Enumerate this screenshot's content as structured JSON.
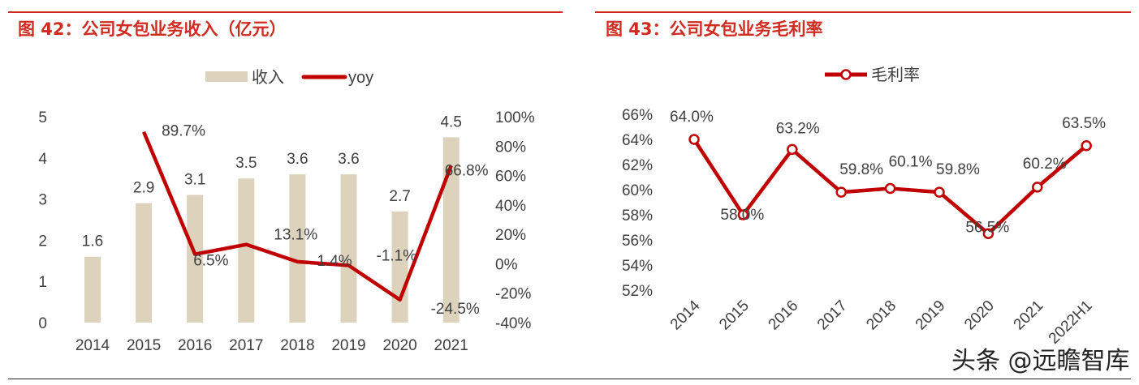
{
  "chart_data": [
    {
      "type": "bar+line",
      "title": "图 42：公司女包业务收入（亿元）",
      "categories": [
        "2014",
        "2015",
        "2016",
        "2017",
        "2018",
        "2019",
        "2020",
        "2021"
      ],
      "series": [
        {
          "name": "收入",
          "type": "bar",
          "axis": "left",
          "values": [
            1.6,
            2.9,
            3.1,
            3.5,
            3.6,
            3.6,
            2.7,
            4.5
          ],
          "labels": [
            "1.6",
            "2.9",
            "3.1",
            "3.5",
            "3.6",
            "3.6",
            "2.7",
            "4.5"
          ],
          "color": "#ddd3bd"
        },
        {
          "name": "yoy",
          "type": "line",
          "axis": "right",
          "values": [
            null,
            89.7,
            6.5,
            13.1,
            1.4,
            -1.1,
            -24.5,
            66.8
          ],
          "labels": [
            "",
            "89.7%",
            "6.5%",
            "13.1%",
            "1.4%",
            "-1.1%",
            "-24.5%",
            "66.8%"
          ],
          "color": "#c00000"
        }
      ],
      "yleft": {
        "range": [
          0,
          5
        ],
        "ticks": [
          "0",
          "1",
          "2",
          "3",
          "4",
          "5"
        ]
      },
      "yright": {
        "range": [
          -40,
          100
        ],
        "ticks": [
          "-40%",
          "-20%",
          "0%",
          "20%",
          "40%",
          "60%",
          "80%",
          "100%"
        ]
      },
      "legend": "top",
      "grid": false
    },
    {
      "type": "line",
      "title": "图 43：公司女包业务毛利率",
      "categories": [
        "2014",
        "2015",
        "2016",
        "2017",
        "2018",
        "2019",
        "2020",
        "2021",
        "2022H1"
      ],
      "series": [
        {
          "name": "毛利率",
          "values": [
            64.0,
            58.0,
            63.2,
            59.8,
            60.1,
            59.8,
            56.5,
            60.2,
            63.5
          ],
          "labels": [
            "64.0%",
            "58.0%",
            "63.2%",
            "59.8%",
            "60.1%",
            "59.8%",
            "56.5%",
            "60.2%",
            "63.5%"
          ],
          "color": "#c00000",
          "marker": "hollow-circle"
        }
      ],
      "y": {
        "range": [
          52,
          66
        ],
        "ticks": [
          "52%",
          "54%",
          "56%",
          "58%",
          "60%",
          "62%",
          "64%",
          "66%"
        ]
      },
      "legend": "top",
      "grid": false
    }
  ],
  "watermark": "头条 @远瞻智库"
}
